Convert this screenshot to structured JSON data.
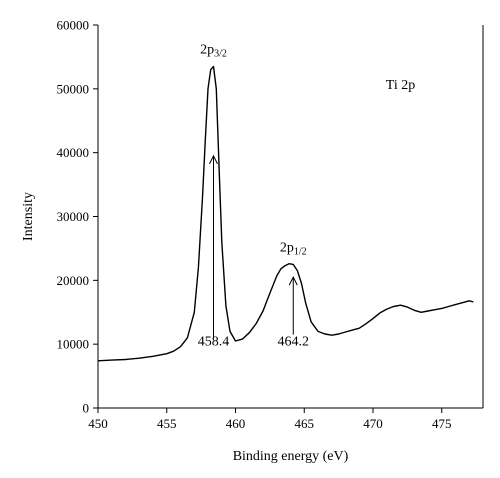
{
  "chart_data": {
    "type": "line",
    "xlabel": "Binding energy (eV)",
    "ylabel": "Intensity",
    "xlim": [
      450,
      478
    ],
    "ylim": [
      0,
      60000
    ],
    "xticks": [
      450,
      455,
      460,
      465,
      470,
      475
    ],
    "yticks": [
      0,
      10000,
      20000,
      30000,
      40000,
      50000,
      60000
    ],
    "grid": false,
    "legend": "none",
    "series": [
      {
        "color": "#000000",
        "x": [
          450,
          451,
          452,
          453,
          454,
          455,
          455.5,
          456,
          456.5,
          457,
          457.3,
          457.6,
          457.8,
          458.0,
          458.2,
          458.4,
          458.6,
          458.8,
          459.0,
          459.3,
          459.6,
          460,
          460.5,
          461,
          461.5,
          462,
          462.5,
          463,
          463.3,
          463.6,
          463.9,
          464.2,
          464.5,
          464.8,
          465.1,
          465.5,
          466,
          466.5,
          467,
          467.5,
          468,
          468.5,
          469,
          469.5,
          470,
          470.5,
          471,
          471.5,
          472,
          472.5,
          473,
          473.5,
          474,
          474.5,
          475,
          475.5,
          476,
          476.5,
          477,
          477.3
        ],
        "y": [
          7400,
          7500,
          7600,
          7800,
          8100,
          8500,
          8900,
          9600,
          11000,
          15000,
          22000,
          33000,
          42000,
          50000,
          53000,
          53500,
          50000,
          38000,
          26000,
          16000,
          12000,
          10500,
          10800,
          11800,
          13200,
          15200,
          18000,
          20700,
          21800,
          22300,
          22600,
          22500,
          21500,
          19500,
          16500,
          13500,
          12000,
          11600,
          11400,
          11600,
          11900,
          12200,
          12500,
          13200,
          14000,
          14900,
          15500,
          15900,
          16100,
          15800,
          15300,
          15000,
          15200,
          15400,
          15600,
          15900,
          16200,
          16500,
          16800,
          16600
        ]
      }
    ],
    "annotations": [
      {
        "id": "peak1",
        "main": "2p",
        "sub": "3/2",
        "x": 458.4,
        "y": 55500
      },
      {
        "id": "peak2",
        "main": "2p",
        "sub": "1/2",
        "x": 464.2,
        "y": 24500
      },
      {
        "id": "val1",
        "text": "458.4",
        "x": 458.4,
        "y": 9800
      },
      {
        "id": "val2",
        "text": "464.2",
        "x": 464.2,
        "y": 9800
      },
      {
        "id": "elem",
        "text": "Ti 2p",
        "x": 472,
        "y": 50000
      }
    ],
    "arrows": [
      {
        "x": 458.4,
        "y_from": 11000,
        "y_to": 39500
      },
      {
        "x": 464.2,
        "y_from": 11500,
        "y_to": 20500
      }
    ]
  }
}
